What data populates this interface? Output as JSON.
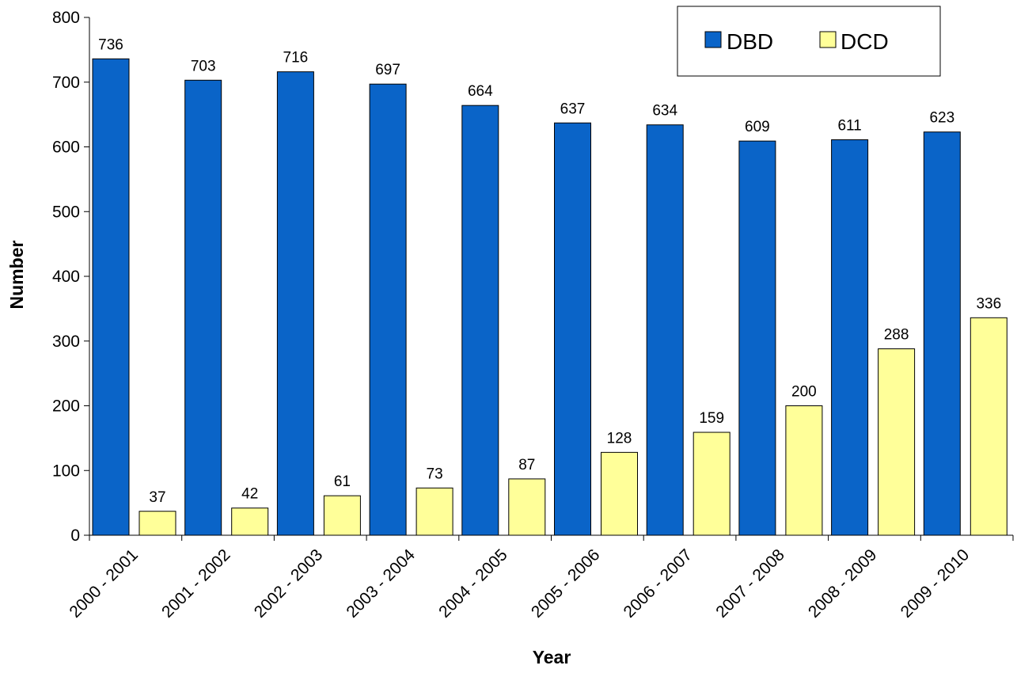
{
  "chart_data": {
    "type": "bar",
    "xlabel": "Year",
    "ylabel": "Number",
    "ylim": [
      0,
      800
    ],
    "yticks": [
      "0",
      "100",
      "200",
      "300",
      "400",
      "500",
      "600",
      "700",
      "800"
    ],
    "categories": [
      "2000 - 2001",
      "2001 - 2002",
      "2002 - 2003",
      "2003 - 2004",
      "2004 - 2005",
      "2005 - 2006",
      "2006 - 2007",
      "2007 - 2008",
      "2008 - 2009",
      "2009 - 2010"
    ],
    "series": [
      {
        "name": "DBD",
        "color": "#0a64c8",
        "values": [
          736,
          703,
          716,
          697,
          664,
          637,
          634,
          609,
          611,
          623
        ]
      },
      {
        "name": "DCD",
        "color": "#ffff99",
        "values": [
          37,
          42,
          61,
          73,
          87,
          128,
          159,
          200,
          288,
          336
        ]
      }
    ],
    "grid": false,
    "legend_position": "top-right",
    "data_labels": true
  }
}
